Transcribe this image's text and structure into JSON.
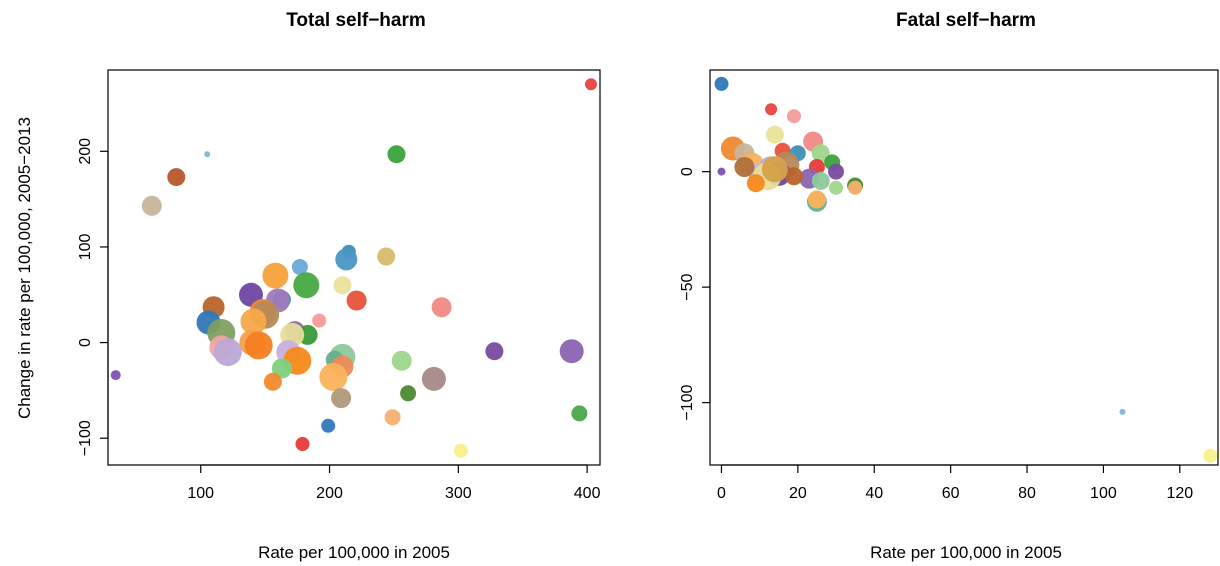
{
  "chart_data": [
    {
      "type": "scatter",
      "title": "Total self−harm",
      "xlabel": "Rate per 100,000 in 2005",
      "ylabel": "Change in rate per 100,000, 2005−2013",
      "xlim": [
        28,
        410
      ],
      "ylim": [
        -128,
        285
      ],
      "xticks": [
        100,
        200,
        300,
        400
      ],
      "xtick_labels": [
        "100",
        "200",
        "300",
        "400"
      ],
      "yticks": [
        -100,
        0,
        100,
        200
      ],
      "ytick_labels": [
        "−100",
        "0",
        "100",
        "200"
      ],
      "grid": false,
      "points": [
        {
          "x": 403,
          "y": 270,
          "r": 6,
          "color": "#e8423f"
        },
        {
          "x": 105,
          "y": 197,
          "r": 3,
          "color": "#7eb6de"
        },
        {
          "x": 252,
          "y": 197,
          "r": 9,
          "color": "#3aa33a"
        },
        {
          "x": 81,
          "y": 173,
          "r": 9,
          "color": "#b5592a"
        },
        {
          "x": 62,
          "y": 143,
          "r": 10,
          "color": "#c9b49a"
        },
        {
          "x": 215,
          "y": 95,
          "r": 7,
          "color": "#3b8fb8"
        },
        {
          "x": 213,
          "y": 87,
          "r": 11,
          "color": "#4a97c4"
        },
        {
          "x": 244,
          "y": 90,
          "r": 9,
          "color": "#d4bb6e"
        },
        {
          "x": 177,
          "y": 79,
          "r": 8,
          "color": "#6aa8d6"
        },
        {
          "x": 158,
          "y": 70,
          "r": 13,
          "color": "#f6a23a"
        },
        {
          "x": 210,
          "y": 60,
          "r": 9,
          "color": "#ebe19a"
        },
        {
          "x": 182,
          "y": 60,
          "r": 13,
          "color": "#46a942"
        },
        {
          "x": 139,
          "y": 50,
          "r": 12,
          "color": "#6b47a0"
        },
        {
          "x": 163,
          "y": 45,
          "r": 9,
          "color": "#3a88c2"
        },
        {
          "x": 160,
          "y": 44,
          "r": 12,
          "color": "#9e7bb8"
        },
        {
          "x": 221,
          "y": 44,
          "r": 10,
          "color": "#e8523a"
        },
        {
          "x": 110,
          "y": 37,
          "r": 11,
          "color": "#b8652a"
        },
        {
          "x": 287,
          "y": 37,
          "r": 10,
          "color": "#f08a84"
        },
        {
          "x": 148,
          "y": 32,
          "r": 13,
          "color": "#ee8a2e"
        },
        {
          "x": 150,
          "y": 29,
          "r": 14,
          "color": "#b58a58"
        },
        {
          "x": 192,
          "y": 23,
          "r": 7,
          "color": "#f49a9a"
        },
        {
          "x": 141,
          "y": 22,
          "r": 13,
          "color": "#f8a848"
        },
        {
          "x": 106,
          "y": 21,
          "r": 12,
          "color": "#2f78b8"
        },
        {
          "x": 173,
          "y": 12,
          "r": 10,
          "color": "#8a6ab0"
        },
        {
          "x": 116,
          "y": 10,
          "r": 14,
          "color": "#7fa060"
        },
        {
          "x": 183,
          "y": 8,
          "r": 10,
          "color": "#3a9a3a"
        },
        {
          "x": 171,
          "y": 8,
          "r": 12,
          "color": "#e8dc9a"
        },
        {
          "x": 140,
          "y": 0,
          "r": 13,
          "color": "#f4a050"
        },
        {
          "x": 145,
          "y": -3,
          "r": 14,
          "color": "#f57e20"
        },
        {
          "x": 116,
          "y": -5,
          "r": 12,
          "color": "#f2a6a0"
        },
        {
          "x": 121,
          "y": -10,
          "r": 14,
          "color": "#bca8d6"
        },
        {
          "x": 168,
          "y": -10,
          "r": 12,
          "color": "#c7b0dc"
        },
        {
          "x": 328,
          "y": -9,
          "r": 9,
          "color": "#7a4aa2"
        },
        {
          "x": 388,
          "y": -9,
          "r": 12,
          "color": "#8a64b2"
        },
        {
          "x": 210,
          "y": -15,
          "r": 13,
          "color": "#8cc99a"
        },
        {
          "x": 256,
          "y": -19,
          "r": 10,
          "color": "#9ed68a"
        },
        {
          "x": 204,
          "y": -18,
          "r": 9,
          "color": "#66b08a"
        },
        {
          "x": 175,
          "y": -19,
          "r": 14,
          "color": "#f68a1a"
        },
        {
          "x": 163,
          "y": -27,
          "r": 10,
          "color": "#7ed07e"
        },
        {
          "x": 210,
          "y": -25,
          "r": 11,
          "color": "#ee8a5a"
        },
        {
          "x": 203,
          "y": -36,
          "r": 14,
          "color": "#f9b35a"
        },
        {
          "x": 34,
          "y": -34,
          "r": 5,
          "color": "#8050b0"
        },
        {
          "x": 281,
          "y": -38,
          "r": 12,
          "color": "#a88888"
        },
        {
          "x": 156,
          "y": -41,
          "r": 9,
          "color": "#f08a2a"
        },
        {
          "x": 261,
          "y": -53,
          "r": 8,
          "color": "#4a8a2e"
        },
        {
          "x": 209,
          "y": -58,
          "r": 10,
          "color": "#b0987a"
        },
        {
          "x": 249,
          "y": -78,
          "r": 8,
          "color": "#f8b070"
        },
        {
          "x": 394,
          "y": -74,
          "r": 8,
          "color": "#4aa64a"
        },
        {
          "x": 199,
          "y": -87,
          "r": 7,
          "color": "#2f78bc"
        },
        {
          "x": 179,
          "y": -106,
          "r": 7,
          "color": "#e83a3a"
        },
        {
          "x": 302,
          "y": -113,
          "r": 7,
          "color": "#f8f08a"
        }
      ]
    },
    {
      "type": "scatter",
      "title": "Fatal self−harm",
      "xlabel": "Rate per 100,000 in 2005",
      "ylabel": "",
      "xlim": [
        -3,
        130
      ],
      "ylim": [
        -127,
        44
      ],
      "xticks": [
        0,
        20,
        40,
        60,
        80,
        100,
        120
      ],
      "xtick_labels": [
        "0",
        "20",
        "40",
        "60",
        "80",
        "100",
        "120"
      ],
      "yticks": [
        -100,
        -50,
        0
      ],
      "ytick_labels": [
        "−100",
        "−50",
        "0"
      ],
      "grid": false,
      "points": [
        {
          "x": 0,
          "y": 38,
          "r": 7,
          "color": "#2f78b8"
        },
        {
          "x": 13,
          "y": 27,
          "r": 6,
          "color": "#e8423f"
        },
        {
          "x": 19,
          "y": 24,
          "r": 7,
          "color": "#f49a9a"
        },
        {
          "x": 14,
          "y": 16,
          "r": 9,
          "color": "#ebe19a"
        },
        {
          "x": 24,
          "y": 13,
          "r": 10,
          "color": "#f08a84"
        },
        {
          "x": 3,
          "y": 10,
          "r": 12,
          "color": "#ee8a2e"
        },
        {
          "x": 16,
          "y": 9,
          "r": 8,
          "color": "#e8523a"
        },
        {
          "x": 20,
          "y": 8,
          "r": 8,
          "color": "#3b8fb8"
        },
        {
          "x": 26,
          "y": 8,
          "r": 9,
          "color": "#9ed68a"
        },
        {
          "x": 6,
          "y": 8,
          "r": 10,
          "color": "#c9b49a"
        },
        {
          "x": 29,
          "y": 4,
          "r": 8,
          "color": "#3aa33a"
        },
        {
          "x": 8,
          "y": 3,
          "r": 12,
          "color": "#f9b35a"
        },
        {
          "x": 17,
          "y": 3,
          "r": 13,
          "color": "#b58a58"
        },
        {
          "x": 13,
          "y": 1,
          "r": 13,
          "color": "#bca8d6"
        },
        {
          "x": 25,
          "y": 2,
          "r": 8,
          "color": "#e83a3a"
        },
        {
          "x": 30,
          "y": 0,
          "r": 8,
          "color": "#7a4aa2"
        },
        {
          "x": 0,
          "y": 0,
          "r": 4,
          "color": "#8050b0"
        },
        {
          "x": 10,
          "y": -1,
          "r": 11,
          "color": "#c7b0dc"
        },
        {
          "x": 15,
          "y": -1,
          "r": 12,
          "color": "#6b47a0"
        },
        {
          "x": 12,
          "y": -2,
          "r": 14,
          "color": "#e8dc9a"
        },
        {
          "x": 23,
          "y": -3,
          "r": 10,
          "color": "#8a64b2"
        },
        {
          "x": 19,
          "y": -2,
          "r": 9,
          "color": "#b8652a"
        },
        {
          "x": 26,
          "y": -4,
          "r": 9,
          "color": "#8cc99a"
        },
        {
          "x": 9,
          "y": -5,
          "r": 9,
          "color": "#f68a1a"
        },
        {
          "x": 14,
          "y": 1,
          "r": 13,
          "color": "#d4a24a"
        },
        {
          "x": 6,
          "y": 2,
          "r": 10,
          "color": "#b0703a"
        },
        {
          "x": 30,
          "y": -7,
          "r": 7,
          "color": "#9ed68a"
        },
        {
          "x": 35,
          "y": -6,
          "r": 8,
          "color": "#4a8a2e"
        },
        {
          "x": 35,
          "y": -7,
          "r": 7,
          "color": "#f8b070"
        },
        {
          "x": 25,
          "y": -13,
          "r": 10,
          "color": "#66b08a"
        },
        {
          "x": 25,
          "y": -12,
          "r": 9,
          "color": "#f9b35a"
        },
        {
          "x": 105,
          "y": -104,
          "r": 3,
          "color": "#7eb6de"
        },
        {
          "x": 128,
          "y": -123,
          "r": 7,
          "color": "#f8f08a"
        }
      ]
    }
  ]
}
